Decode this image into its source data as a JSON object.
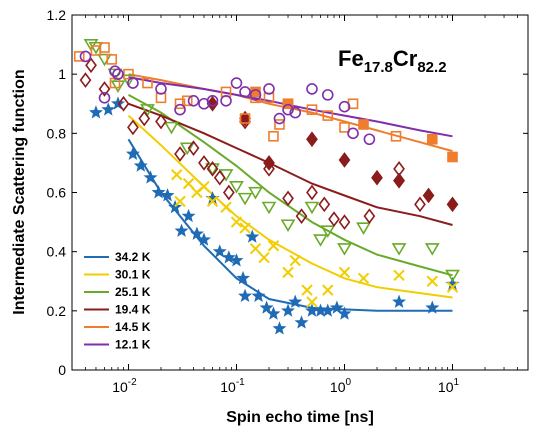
{
  "chart_data": {
    "type": "scatter",
    "title": "",
    "annotation": {
      "base1": "Fe",
      "sub1": "17.8",
      "base2": "Cr",
      "sub2": "82.2"
    },
    "xlabel": "Spin echo time [ns]",
    "ylabel": "Intermediate Scattering function",
    "x_scale": "log",
    "xlim": [
      0.003,
      50
    ],
    "ylim": [
      0,
      1.2
    ],
    "x_ticks": [
      0.01,
      0.1,
      1,
      10
    ],
    "x_tick_labels": [
      {
        "base": "10",
        "exp": "-2"
      },
      {
        "base": "10",
        "exp": "-1"
      },
      {
        "base": "10",
        "exp": "0"
      },
      {
        "base": "10",
        "exp": "1"
      }
    ],
    "y_ticks": [
      0,
      0.2,
      0.4,
      0.6,
      0.8,
      1,
      1.2
    ],
    "y_tick_labels": [
      "0",
      "0.2",
      "0.4",
      "0.6",
      "0.8",
      "1",
      "1.2"
    ],
    "grid": false,
    "legend_position": "bottom-left",
    "series": [
      {
        "name": "34.2 K",
        "color": "#1f6bb5",
        "marker": "star",
        "points": [
          [
            0.005,
            0.87
          ],
          [
            0.0065,
            0.88
          ],
          [
            0.008,
            0.9
          ],
          [
            0.011,
            0.73
          ],
          [
            0.013,
            0.69
          ],
          [
            0.016,
            0.65
          ],
          [
            0.019,
            0.6
          ],
          [
            0.023,
            0.59
          ],
          [
            0.027,
            0.55
          ],
          [
            0.031,
            0.47
          ],
          [
            0.036,
            0.52
          ],
          [
            0.043,
            0.46
          ],
          [
            0.05,
            0.44
          ],
          [
            0.06,
            0.58
          ],
          [
            0.07,
            0.4
          ],
          [
            0.085,
            0.38
          ],
          [
            0.1,
            0.37
          ],
          [
            0.115,
            0.31
          ],
          [
            0.12,
            0.25
          ],
          [
            0.14,
            0.45
          ],
          [
            0.16,
            0.25
          ],
          [
            0.19,
            0.21
          ],
          [
            0.22,
            0.19
          ],
          [
            0.25,
            0.14
          ],
          [
            0.3,
            0.2
          ],
          [
            0.35,
            0.23
          ],
          [
            0.4,
            0.16
          ],
          [
            0.5,
            0.2
          ],
          [
            0.6,
            0.2
          ],
          [
            0.7,
            0.2
          ],
          [
            0.85,
            0.21
          ],
          [
            1.0,
            0.19
          ],
          [
            3.2,
            0.23
          ],
          [
            6.5,
            0.21
          ],
          [
            10,
            0.29
          ]
        ],
        "fit_x": [
          0.01,
          0.02,
          0.05,
          0.1,
          0.2,
          0.5,
          1,
          2,
          5,
          10
        ],
        "fit_y": [
          0.78,
          0.6,
          0.42,
          0.31,
          0.24,
          0.21,
          0.205,
          0.2,
          0.2,
          0.2
        ]
      },
      {
        "name": "30.1 K",
        "color": "#f2cd00",
        "marker": "x",
        "points": [
          [
            0.028,
            0.66
          ],
          [
            0.03,
            0.57
          ],
          [
            0.036,
            0.63
          ],
          [
            0.043,
            0.6
          ],
          [
            0.05,
            0.62
          ],
          [
            0.06,
            0.57
          ],
          [
            0.08,
            0.55
          ],
          [
            0.1,
            0.5
          ],
          [
            0.12,
            0.48
          ],
          [
            0.15,
            0.41
          ],
          [
            0.18,
            0.38
          ],
          [
            0.22,
            0.42
          ],
          [
            0.3,
            0.33
          ],
          [
            0.35,
            0.37
          ],
          [
            0.45,
            0.27
          ],
          [
            0.5,
            0.23
          ],
          [
            0.7,
            0.27
          ],
          [
            1.0,
            0.33
          ],
          [
            1.5,
            0.31
          ],
          [
            3.2,
            0.32
          ],
          [
            6.5,
            0.3
          ],
          [
            10,
            0.28
          ]
        ],
        "fit_x": [
          0.01,
          0.02,
          0.05,
          0.1,
          0.2,
          0.5,
          1,
          2,
          5,
          10
        ],
        "fit_y": [
          0.86,
          0.76,
          0.62,
          0.52,
          0.44,
          0.36,
          0.31,
          0.28,
          0.26,
          0.245
        ]
      },
      {
        "name": "25.1 K",
        "color": "#6aaa2a",
        "marker": "triangle-down",
        "points": [
          [
            0.0045,
            1.1
          ],
          [
            0.005,
            1.09
          ],
          [
            0.006,
            1.05
          ],
          [
            0.0075,
            1.0
          ],
          [
            0.008,
            0.96
          ],
          [
            0.01,
            0.98
          ],
          [
            0.015,
            0.88
          ],
          [
            0.025,
            0.82
          ],
          [
            0.035,
            0.75
          ],
          [
            0.06,
            0.68
          ],
          [
            0.08,
            0.66
          ],
          [
            0.1,
            0.62
          ],
          [
            0.12,
            0.58
          ],
          [
            0.15,
            0.6
          ],
          [
            0.2,
            0.55
          ],
          [
            0.3,
            0.49
          ],
          [
            0.5,
            0.55
          ],
          [
            0.6,
            0.44
          ],
          [
            0.7,
            0.47
          ],
          [
            1.0,
            0.41
          ],
          [
            1.5,
            0.48
          ],
          [
            3.2,
            0.41
          ],
          [
            6.5,
            0.41
          ],
          [
            10,
            0.32
          ]
        ],
        "fit_x": [
          0.01,
          0.02,
          0.05,
          0.1,
          0.2,
          0.5,
          1,
          2,
          5,
          10
        ],
        "fit_y": [
          0.93,
          0.87,
          0.77,
          0.69,
          0.6,
          0.5,
          0.44,
          0.39,
          0.35,
          0.32
        ]
      },
      {
        "name": "19.4 K",
        "color": "#8b1c1c",
        "marker": "diamond",
        "points": [
          [
            0.004,
            0.98
          ],
          [
            0.0045,
            1.03
          ],
          [
            0.006,
            0.95
          ],
          [
            0.009,
            0.9
          ],
          [
            0.011,
            0.82
          ],
          [
            0.014,
            0.85
          ],
          [
            0.02,
            0.84
          ],
          [
            0.03,
            0.73
          ],
          [
            0.04,
            0.75
          ],
          [
            0.05,
            0.7
          ],
          [
            0.06,
            0.68
          ],
          [
            0.07,
            0.65
          ],
          [
            0.085,
            0.6
          ],
          [
            0.12,
            0.84
          ],
          [
            0.2,
            0.68
          ],
          [
            0.3,
            0.58
          ],
          [
            0.4,
            0.52
          ],
          [
            0.5,
            0.6
          ],
          [
            0.65,
            0.56
          ],
          [
            0.8,
            0.51
          ],
          [
            1.0,
            0.5
          ],
          [
            1.7,
            0.52
          ],
          [
            3.2,
            0.64
          ],
          [
            3.2,
            0.68
          ],
          [
            5,
            0.56
          ]
        ],
        "filled_points": [
          [
            0.06,
            0.9
          ],
          [
            0.12,
            0.85
          ],
          [
            0.2,
            0.7
          ],
          [
            0.5,
            0.78
          ],
          [
            1.0,
            0.71
          ],
          [
            2.0,
            0.65
          ],
          [
            3.2,
            0.64
          ],
          [
            6.0,
            0.59
          ],
          [
            10,
            0.56
          ]
        ],
        "fit_x": [
          0.01,
          0.02,
          0.05,
          0.1,
          0.2,
          0.5,
          1,
          2,
          5,
          10
        ],
        "fit_y": [
          0.9,
          0.86,
          0.8,
          0.75,
          0.7,
          0.63,
          0.59,
          0.55,
          0.52,
          0.49
        ]
      },
      {
        "name": "14.5 K",
        "color": "#ef7d2d",
        "marker": "square",
        "points": [
          [
            0.0035,
            1.06
          ],
          [
            0.005,
            1.08
          ],
          [
            0.006,
            1.09
          ],
          [
            0.007,
            1.05
          ],
          [
            0.0075,
            0.97
          ],
          [
            0.01,
            1.0
          ],
          [
            0.015,
            0.97
          ],
          [
            0.02,
            0.92
          ],
          [
            0.03,
            0.9
          ],
          [
            0.035,
            0.91
          ],
          [
            0.08,
            0.94
          ],
          [
            0.12,
            0.85
          ],
          [
            0.15,
            0.92
          ],
          [
            0.2,
            0.92
          ],
          [
            0.22,
            0.79
          ],
          [
            0.25,
            0.83
          ],
          [
            0.3,
            0.9
          ],
          [
            0.5,
            0.88
          ],
          [
            0.7,
            0.86
          ],
          [
            1.0,
            0.82
          ],
          [
            1.2,
            0.9
          ],
          [
            3.0,
            0.79
          ]
        ],
        "filled_points": [
          [
            0.15,
            0.94
          ],
          [
            0.3,
            0.9
          ],
          [
            1.5,
            0.83
          ],
          [
            6.5,
            0.78
          ],
          [
            10,
            0.72
          ]
        ],
        "fit_x": [
          0.01,
          0.02,
          0.05,
          0.1,
          0.2,
          0.5,
          1,
          2,
          5,
          10
        ],
        "fit_y": [
          1.0,
          0.98,
          0.95,
          0.93,
          0.9,
          0.87,
          0.84,
          0.81,
          0.77,
          0.74
        ]
      },
      {
        "name": "12.1 K",
        "color": "#7f2faa",
        "marker": "circle",
        "points": [
          [
            0.004,
            1.06
          ],
          [
            0.006,
            0.92
          ],
          [
            0.0075,
            1.01
          ],
          [
            0.008,
            1.0
          ],
          [
            0.011,
            0.97
          ],
          [
            0.02,
            0.95
          ],
          [
            0.03,
            0.88
          ],
          [
            0.04,
            0.91
          ],
          [
            0.05,
            0.9
          ],
          [
            0.06,
            0.91
          ],
          [
            0.08,
            0.91
          ],
          [
            0.1,
            0.97
          ],
          [
            0.12,
            0.94
          ],
          [
            0.15,
            0.93
          ],
          [
            0.2,
            0.95
          ],
          [
            0.25,
            0.85
          ],
          [
            0.3,
            0.88
          ],
          [
            0.35,
            0.87
          ],
          [
            0.5,
            0.95
          ],
          [
            0.7,
            0.93
          ],
          [
            1.0,
            0.89
          ],
          [
            1.2,
            0.8
          ],
          [
            1.7,
            0.78
          ]
        ],
        "fit_x": [
          0.01,
          0.02,
          0.05,
          0.1,
          0.2,
          0.5,
          1,
          2,
          5,
          10
        ],
        "fit_y": [
          0.99,
          0.97,
          0.95,
          0.93,
          0.91,
          0.88,
          0.86,
          0.84,
          0.81,
          0.79
        ]
      }
    ]
  }
}
